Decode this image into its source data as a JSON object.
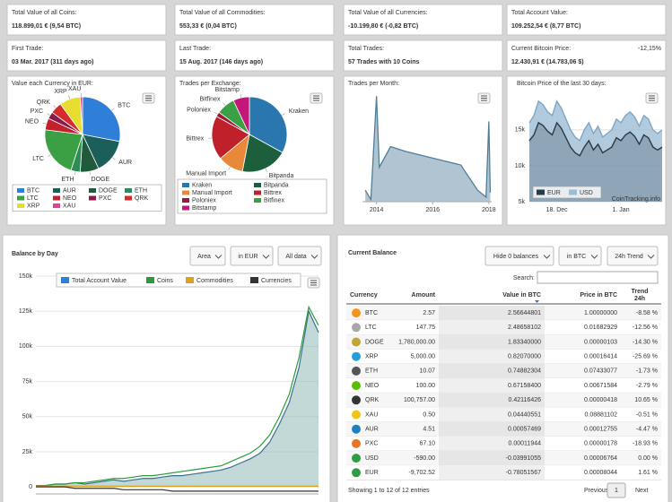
{
  "cards": [
    {
      "label": "Total Value of all Coins:",
      "value": "118.899,01 € (9,54 BTC)"
    },
    {
      "label": "Total Value of all Commodities:",
      "value": "553,33 € (0,04 BTC)"
    },
    {
      "label": "Total Value of all Currencies:",
      "value": "-10.199,80 € (-0,82 BTC)"
    },
    {
      "label": "Total Account Value:",
      "value": "109.252,54 € (8,77 BTC)"
    },
    {
      "label": "First Trade:",
      "value": "03 Mar. 2017 (311 days ago)"
    },
    {
      "label": "Last Trade:",
      "value": "15 Aug. 2017 (146 days ago)"
    },
    {
      "label": "Total Trades:",
      "value": "57 Trades with 10 Coins"
    },
    {
      "label": "Current Bitcoin Price:",
      "value": "12.430,91 € (14.783,06 $)",
      "change": "-12,15%"
    }
  ],
  "currency_pie": {
    "type": "pie",
    "title": "Value each Currency in EUR:",
    "categories": [
      "BTC",
      "AUR",
      "DOGE",
      "ETH",
      "LTC",
      "NEO",
      "PXC",
      "QRK",
      "XRP",
      "XAU"
    ],
    "values": [
      28,
      15,
      8,
      4,
      22,
      5,
      3,
      5,
      9,
      1
    ],
    "colors": [
      "#2f7ed8",
      "#1b5e5a",
      "#1f5a3a",
      "#2e8b57",
      "#3aa043",
      "#c4202c",
      "#8b1a4a",
      "#d72a2a",
      "#e6dd2e",
      "#e040a0"
    ]
  },
  "exchange_pie": {
    "type": "pie",
    "title": "Trades per Exchange:",
    "categories": [
      "Kraken",
      "Bitpanda",
      "Manual Import",
      "Bittrex",
      "Poloniex",
      "Bitfinex",
      "Bitstamp"
    ],
    "values": [
      33,
      20,
      11,
      19,
      2,
      8,
      7
    ],
    "colors": [
      "#2a77b0",
      "#1d5f3d",
      "#e8893a",
      "#c0202a",
      "#9a1a3a",
      "#3aa043",
      "#c2187a"
    ]
  },
  "trades_chart": {
    "type": "area",
    "title": "Trades per Month:",
    "x": [
      2013.6,
      2013.8,
      2014.0,
      2014.1,
      2014.5,
      2015,
      2016,
      2017,
      2017.6,
      2017.9,
      2018.0,
      2018.05
    ],
    "values": [
      5,
      1,
      46,
      15,
      24,
      22,
      19,
      16,
      5,
      2,
      35,
      4
    ],
    "xlim": [
      2013.5,
      2018.1
    ],
    "ylim": [
      0,
      50
    ],
    "xticks": [
      2014,
      2016,
      2018
    ],
    "color": "#4f7e99"
  },
  "btc_chart": {
    "type": "area",
    "title": "Bitcoin Price of the last 30 days:",
    "categories": [
      null,
      null,
      null,
      null,
      null,
      null,
      "18. Dec",
      null,
      null,
      null,
      null,
      null,
      null,
      null,
      null,
      null,
      null,
      null,
      null,
      null,
      "1. Jan",
      null,
      null,
      null,
      null,
      null,
      null,
      null,
      null,
      null
    ],
    "series": [
      {
        "name": "EUR",
        "color": "#2b3a47",
        "values": [
          13500,
          14300,
          16000,
          15600,
          14800,
          14300,
          16000,
          15200,
          13900,
          12600,
          11800,
          11400,
          12600,
          13500,
          12200,
          13000,
          11800,
          12200,
          12600,
          13900,
          13500,
          14300,
          14700,
          14100,
          13000,
          14300,
          13900,
          12600,
          12200,
          12600
        ]
      },
      {
        "name": "USD",
        "color": "#9dbdd6",
        "values": [
          16000,
          17000,
          19000,
          18500,
          17500,
          17000,
          19000,
          18000,
          16500,
          15000,
          14000,
          13500,
          15000,
          16000,
          14500,
          15500,
          14000,
          14500,
          15000,
          16500,
          16000,
          17000,
          17500,
          16800,
          15500,
          17000,
          16500,
          15000,
          14500,
          15000
        ]
      }
    ],
    "ylim": [
      5000,
      20600
    ],
    "yticks": [
      {
        "value": 5000,
        "label": "5k"
      },
      {
        "value": 10000,
        "label": "10k"
      },
      {
        "value": 15000,
        "label": "15k"
      }
    ],
    "grid": true,
    "watermark": "CoinTracking.info"
  },
  "balance_chart": {
    "type": "area",
    "title": "Balance by Day",
    "buttons": [
      "Area",
      "in EUR",
      "All data"
    ],
    "series": [
      {
        "name": "Total Account Value",
        "color": "#2f7ed8",
        "values": [
          1000,
          1000,
          2000,
          2000,
          3000,
          2000,
          3000,
          4000,
          5000,
          4000,
          5000,
          6000,
          6000,
          7000,
          8000,
          8000,
          9000,
          10000,
          11000,
          12000,
          14000,
          17000,
          20000,
          24000,
          32000,
          45000,
          60000,
          85000,
          125000,
          110000
        ]
      },
      {
        "name": "Coins",
        "color": "#2a9d3a",
        "values": [
          1000,
          1000,
          2000,
          2000,
          3000,
          3000,
          4000,
          5000,
          6000,
          6000,
          7000,
          8000,
          8000,
          9000,
          10000,
          11000,
          12000,
          13000,
          14000,
          15000,
          18000,
          21000,
          24000,
          29000,
          37000,
          50000,
          66000,
          92000,
          128000,
          115000
        ]
      },
      {
        "name": "Commodities",
        "color": "#e0a020",
        "values": [
          500,
          500,
          500,
          500,
          500,
          500,
          500,
          500,
          500,
          500,
          500,
          500,
          500,
          500,
          500,
          500,
          500,
          500,
          500,
          500,
          500,
          500,
          500,
          500,
          500,
          500,
          500,
          500,
          500,
          500
        ]
      },
      {
        "name": "Currencies",
        "color": "#333333",
        "values": [
          0,
          0,
          0,
          0,
          -1000,
          -1000,
          -1000,
          -1000,
          -1000,
          -2000,
          -2000,
          -2000,
          -2000,
          -2000,
          -3000,
          -3000,
          -3000,
          -3000,
          -3000,
          -3000,
          -3000,
          -3000,
          -3000,
          -3000,
          -3000,
          -3000,
          -3000,
          -3000,
          -3000,
          -3000
        ]
      }
    ],
    "ylim": [
      -5000,
      157000
    ],
    "yticks": [
      0,
      {
        "value": 25000,
        "label": "25k"
      },
      {
        "value": 50000,
        "label": "50k"
      },
      {
        "value": 75000,
        "label": "75k"
      },
      {
        "value": 100000,
        "label": "100k"
      },
      {
        "value": 125000,
        "label": "125k"
      },
      {
        "value": 150000,
        "label": "150k"
      }
    ],
    "grid": true
  },
  "balance_table": {
    "title": "Current Balance",
    "buttons": [
      "Hide 0 balances",
      "in BTC",
      "24h Trend"
    ],
    "search_label": "Search:",
    "columns": [
      "Currency",
      "Amount",
      "Value in BTC",
      "Price in BTC"
    ],
    "trend_header": [
      "Trend",
      "24h"
    ],
    "rows": [
      [
        "BTC",
        "2.57",
        "2.56644801",
        "1.00000000",
        "-8.58 %"
      ],
      [
        "LTC",
        "147.75",
        "2.48658102",
        "0.01682929",
        "-12.56 %"
      ],
      [
        "DOGE",
        "1,780,000.00",
        "1.83340000",
        "0.00000103",
        "-14.30 %"
      ],
      [
        "XRP",
        "5,000.00",
        "0.82070000",
        "0.00016414",
        "-25.69 %"
      ],
      [
        "ETH",
        "10.07",
        "0.74882304",
        "0.07433077",
        "-1.73 %"
      ],
      [
        "NEO",
        "100.00",
        "0.67158400",
        "0.00671584",
        "-2.79 %"
      ],
      [
        "QRK",
        "100,757.00",
        "0.42116426",
        "0.00000418",
        "10.65 %"
      ],
      [
        "XAU",
        "0.50",
        "0.04440551",
        "0.08881102",
        "-0.51 %"
      ],
      [
        "AUR",
        "4.51",
        "0.00057469",
        "0.00012755",
        "-4.47 %"
      ],
      [
        "PXC",
        "67.10",
        "0.00011944",
        "0.00000178",
        "-18.93 %"
      ],
      [
        "USD",
        "-590.00",
        "-0.03991055",
        "0.00006764",
        "0.00 %"
      ],
      [
        "EUR",
        "-9,702.52",
        "-0.78051567",
        "0.00008044",
        "1.61 %"
      ]
    ],
    "icon_colors": [
      "#f7931a",
      "#a8a8a8",
      "#c2a633",
      "#23a0dc",
      "#555555",
      "#58bf00",
      "#333333",
      "#f0c419",
      "#1e7fbf",
      "#e8742a",
      "#2e9e44",
      "#2e9e44"
    ],
    "footer": "Showing 1 to 12 of 12 entries",
    "pagination": [
      "Previous",
      "1",
      "Next"
    ]
  }
}
